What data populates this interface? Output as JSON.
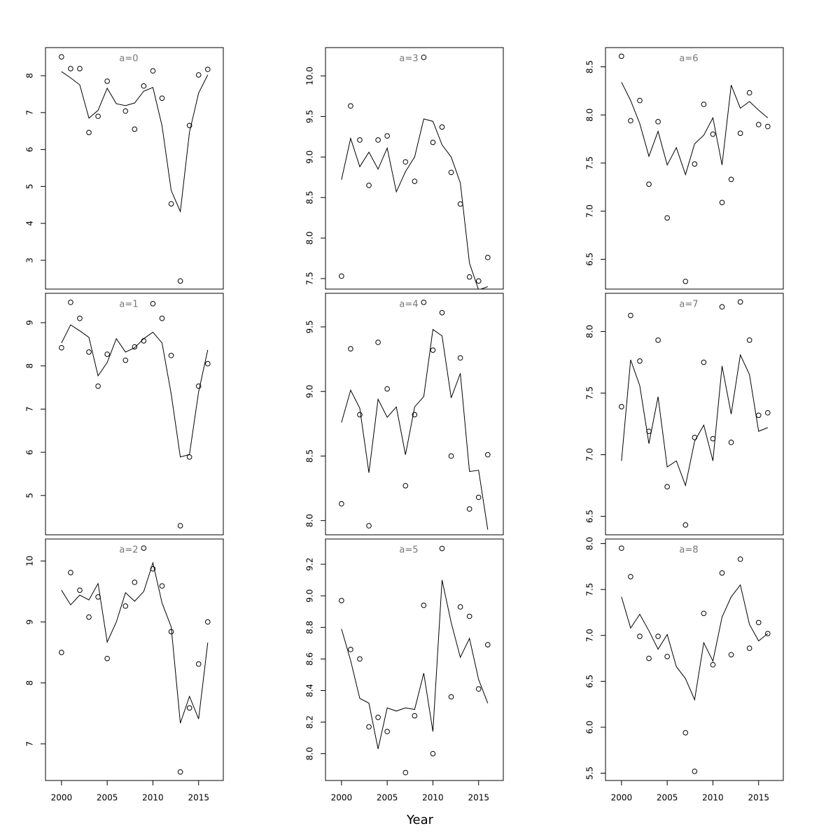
{
  "chart_data": [
    {
      "type": "scatter",
      "title": "a=0",
      "x": [
        2000,
        2001,
        2002,
        2003,
        2004,
        2005,
        2006,
        2007,
        2008,
        2009,
        2010,
        2011,
        2012,
        2013,
        2014,
        2015,
        2016
      ],
      "xlim": [
        1998.25,
        2017.7
      ],
      "ylim": [
        2.22,
        8.76
      ],
      "yticks": [
        3,
        4,
        5,
        6,
        7,
        8
      ],
      "color": "#000000",
      "series": [
        {
          "style": "points",
          "values": [
            8.51,
            8.19,
            8.19,
            6.46,
            6.9,
            7.85,
            null,
            7.04,
            6.55,
            7.72,
            8.13,
            7.39,
            4.53,
            2.44,
            6.65,
            8.02,
            8.17
          ]
        },
        {
          "style": "line",
          "values": [
            8.11,
            7.94,
            7.75,
            6.85,
            7.06,
            7.66,
            7.24,
            7.19,
            7.26,
            7.58,
            7.68,
            6.64,
            4.89,
            4.32,
            6.47,
            7.53,
            8.02
          ]
        }
      ]
    },
    {
      "type": "scatter",
      "title": "a=1",
      "x": [
        2000,
        2001,
        2002,
        2003,
        2004,
        2005,
        2006,
        2007,
        2008,
        2009,
        2010,
        2011,
        2012,
        2013,
        2014,
        2015,
        2016
      ],
      "xlim": [
        1998.25,
        2017.7
      ],
      "ylim": [
        4.09,
        9.68
      ],
      "yticks": [
        5,
        6,
        7,
        8,
        9
      ],
      "color": "#000000",
      "series": [
        {
          "style": "points",
          "values": [
            8.42,
            9.47,
            9.1,
            8.32,
            7.53,
            8.27,
            null,
            8.13,
            8.44,
            8.58,
            9.44,
            9.1,
            8.24,
            4.3,
            5.89,
            7.53,
            8.05
          ]
        },
        {
          "style": "line",
          "values": [
            8.53,
            8.95,
            8.81,
            8.66,
            7.77,
            8.08,
            8.63,
            8.32,
            8.42,
            8.63,
            8.78,
            8.53,
            7.35,
            5.89,
            5.95,
            7.4,
            8.37
          ]
        }
      ]
    },
    {
      "type": "scatter",
      "title": "a=2",
      "x": [
        2000,
        2001,
        2002,
        2003,
        2004,
        2005,
        2006,
        2007,
        2008,
        2009,
        2010,
        2011,
        2012,
        2013,
        2014,
        2015,
        2016
      ],
      "xlim": [
        1998.25,
        2017.7
      ],
      "xticks": [
        2000,
        2005,
        2010,
        2015
      ],
      "ylim": [
        6.4,
        10.36
      ],
      "yticks": [
        7,
        8,
        9,
        10
      ],
      "color": "#000000",
      "series": [
        {
          "style": "points",
          "values": [
            8.5,
            9.81,
            9.52,
            9.08,
            9.41,
            8.4,
            null,
            9.26,
            9.65,
            10.21,
            9.87,
            9.59,
            8.84,
            6.54,
            7.59,
            8.31,
            9.0
          ]
        },
        {
          "style": "line",
          "values": [
            9.52,
            9.28,
            9.44,
            9.36,
            9.63,
            8.67,
            9.0,
            9.48,
            9.34,
            9.5,
            9.97,
            9.31,
            8.92,
            7.34,
            7.78,
            7.41,
            8.66
          ]
        }
      ]
    },
    {
      "type": "scatter",
      "title": "a=3",
      "x": [
        2000,
        2001,
        2002,
        2003,
        2004,
        2005,
        2006,
        2007,
        2008,
        2009,
        2010,
        2011,
        2012,
        2013,
        2014,
        2015,
        2016
      ],
      "xlim": [
        1998.25,
        2017.7
      ],
      "ylim": [
        7.37,
        10.35
      ],
      "yticks": [
        {
          "value": 7.5,
          "label": "7.5"
        },
        {
          "value": 8,
          "label": "8.0"
        },
        8.5,
        {
          "value": 9,
          "label": "9.0"
        },
        9.5,
        {
          "value": 10,
          "label": "10.0"
        }
      ],
      "color": "#000000",
      "series": [
        {
          "style": "points",
          "values": [
            7.53,
            9.63,
            9.21,
            8.65,
            9.21,
            9.26,
            null,
            8.94,
            8.7,
            10.23,
            9.18,
            9.37,
            8.81,
            8.42,
            7.52,
            7.47,
            7.76
          ]
        },
        {
          "style": "line",
          "values": [
            8.72,
            9.23,
            8.88,
            9.06,
            8.85,
            9.11,
            8.57,
            8.82,
            9.0,
            9.47,
            9.44,
            9.15,
            9.0,
            8.68,
            7.69,
            7.36,
            7.4
          ]
        }
      ]
    },
    {
      "type": "scatter",
      "title": "a=4",
      "x": [
        2000,
        2001,
        2002,
        2003,
        2004,
        2005,
        2006,
        2007,
        2008,
        2009,
        2010,
        2011,
        2012,
        2013,
        2014,
        2015,
        2016
      ],
      "xlim": [
        1998.25,
        2017.7
      ],
      "ylim": [
        7.89,
        9.76
      ],
      "yticks": [
        {
          "value": 8,
          "label": "8.0"
        },
        8.5,
        {
          "value": 9,
          "label": "9.0"
        },
        9.5
      ],
      "color": "#000000",
      "series": [
        {
          "style": "points",
          "values": [
            8.13,
            9.33,
            8.82,
            7.96,
            9.38,
            9.02,
            null,
            8.27,
            8.82,
            9.69,
            9.32,
            9.61,
            8.5,
            9.26,
            8.09,
            8.18,
            8.51
          ]
        },
        {
          "style": "line",
          "values": [
            8.76,
            9.01,
            8.87,
            8.37,
            8.94,
            8.8,
            8.88,
            8.51,
            8.88,
            8.96,
            9.48,
            9.43,
            8.95,
            9.14,
            8.38,
            8.39,
            7.93
          ]
        }
      ]
    },
    {
      "type": "scatter",
      "title": "a=5",
      "xlabel": "Year",
      "x": [
        2000,
        2001,
        2002,
        2003,
        2004,
        2005,
        2006,
        2007,
        2008,
        2009,
        2010,
        2011,
        2012,
        2013,
        2014,
        2015,
        2016
      ],
      "xlim": [
        1998.25,
        2017.7
      ],
      "xticks": [
        2000,
        2005,
        2010,
        2015
      ],
      "ylim": [
        7.83,
        9.36
      ],
      "yticks": [
        {
          "value": 8,
          "label": "8.0"
        },
        8.2,
        8.4,
        8.6,
        8.8,
        {
          "value": 9,
          "label": "9.0"
        },
        9.2
      ],
      "color": "#000000",
      "series": [
        {
          "style": "points",
          "values": [
            8.97,
            8.66,
            8.6,
            8.17,
            8.23,
            8.14,
            null,
            7.88,
            8.24,
            8.94,
            8.0,
            9.3,
            8.36,
            8.93,
            8.87,
            8.41,
            8.69
          ]
        },
        {
          "style": "line",
          "values": [
            8.79,
            8.59,
            8.35,
            8.32,
            8.03,
            8.29,
            8.27,
            8.29,
            8.28,
            8.51,
            8.14,
            9.1,
            8.83,
            8.61,
            8.73,
            8.47,
            8.32
          ]
        }
      ]
    },
    {
      "type": "scatter",
      "title": "a=6",
      "x": [
        2000,
        2001,
        2002,
        2003,
        2004,
        2005,
        2006,
        2007,
        2008,
        2009,
        2010,
        2011,
        2012,
        2013,
        2014,
        2015,
        2016
      ],
      "xlim": [
        1998.25,
        2017.7
      ],
      "ylim": [
        6.19,
        8.7
      ],
      "yticks": [
        6.5,
        {
          "value": 7,
          "label": "7.0"
        },
        7.5,
        {
          "value": 8,
          "label": "8.0"
        },
        8.5
      ],
      "color": "#000000",
      "series": [
        {
          "style": "points",
          "values": [
            8.61,
            7.94,
            8.15,
            7.28,
            7.93,
            6.93,
            null,
            6.27,
            7.49,
            8.11,
            7.8,
            7.09,
            7.33,
            7.81,
            8.23,
            7.9,
            7.88
          ]
        },
        {
          "style": "line",
          "values": [
            8.34,
            8.15,
            7.91,
            7.57,
            7.83,
            7.48,
            7.66,
            7.38,
            7.7,
            7.79,
            7.97,
            7.48,
            8.31,
            8.07,
            8.14,
            8.05,
            7.97
          ]
        }
      ]
    },
    {
      "type": "scatter",
      "title": "a=7",
      "x": [
        2000,
        2001,
        2002,
        2003,
        2004,
        2005,
        2006,
        2007,
        2008,
        2009,
        2010,
        2011,
        2012,
        2013,
        2014,
        2015,
        2016
      ],
      "xlim": [
        1998.25,
        2017.7
      ],
      "ylim": [
        6.35,
        8.31
      ],
      "yticks": [
        6.5,
        {
          "value": 7,
          "label": "7.0"
        },
        7.5,
        {
          "value": 8,
          "label": "8.0"
        }
      ],
      "color": "#000000",
      "series": [
        {
          "style": "points",
          "values": [
            7.39,
            8.13,
            7.76,
            7.19,
            7.93,
            6.74,
            null,
            6.43,
            7.14,
            7.75,
            7.13,
            8.2,
            7.1,
            8.24,
            7.93,
            7.32,
            7.34
          ]
        },
        {
          "style": "line",
          "values": [
            6.95,
            7.77,
            7.56,
            7.09,
            7.47,
            6.9,
            6.95,
            6.75,
            7.11,
            7.24,
            6.95,
            7.72,
            7.33,
            7.81,
            7.65,
            7.19,
            7.22
          ]
        }
      ]
    },
    {
      "type": "scatter",
      "title": "a=8",
      "x": [
        2000,
        2001,
        2002,
        2003,
        2004,
        2005,
        2006,
        2007,
        2008,
        2009,
        2010,
        2011,
        2012,
        2013,
        2014,
        2015,
        2016
      ],
      "xlim": [
        1998.25,
        2017.7
      ],
      "xticks": [
        2000,
        2005,
        2010,
        2015
      ],
      "ylim": [
        5.42,
        8.05
      ],
      "yticks": [
        5.5,
        {
          "value": 6,
          "label": "6.0"
        },
        6.5,
        {
          "value": 7,
          "label": "7.0"
        },
        7.5,
        {
          "value": 8,
          "label": "8.0"
        }
      ],
      "color": "#000000",
      "series": [
        {
          "style": "points",
          "values": [
            7.95,
            7.64,
            6.99,
            6.75,
            6.99,
            6.77,
            null,
            5.94,
            5.52,
            7.24,
            6.68,
            7.68,
            6.79,
            7.83,
            6.86,
            7.14,
            7.02
          ]
        },
        {
          "style": "line",
          "values": [
            7.42,
            7.08,
            7.23,
            7.05,
            6.85,
            7.01,
            6.66,
            6.53,
            6.3,
            6.92,
            6.72,
            7.2,
            7.42,
            7.55,
            7.12,
            6.94,
            7.02
          ]
        }
      ]
    }
  ]
}
